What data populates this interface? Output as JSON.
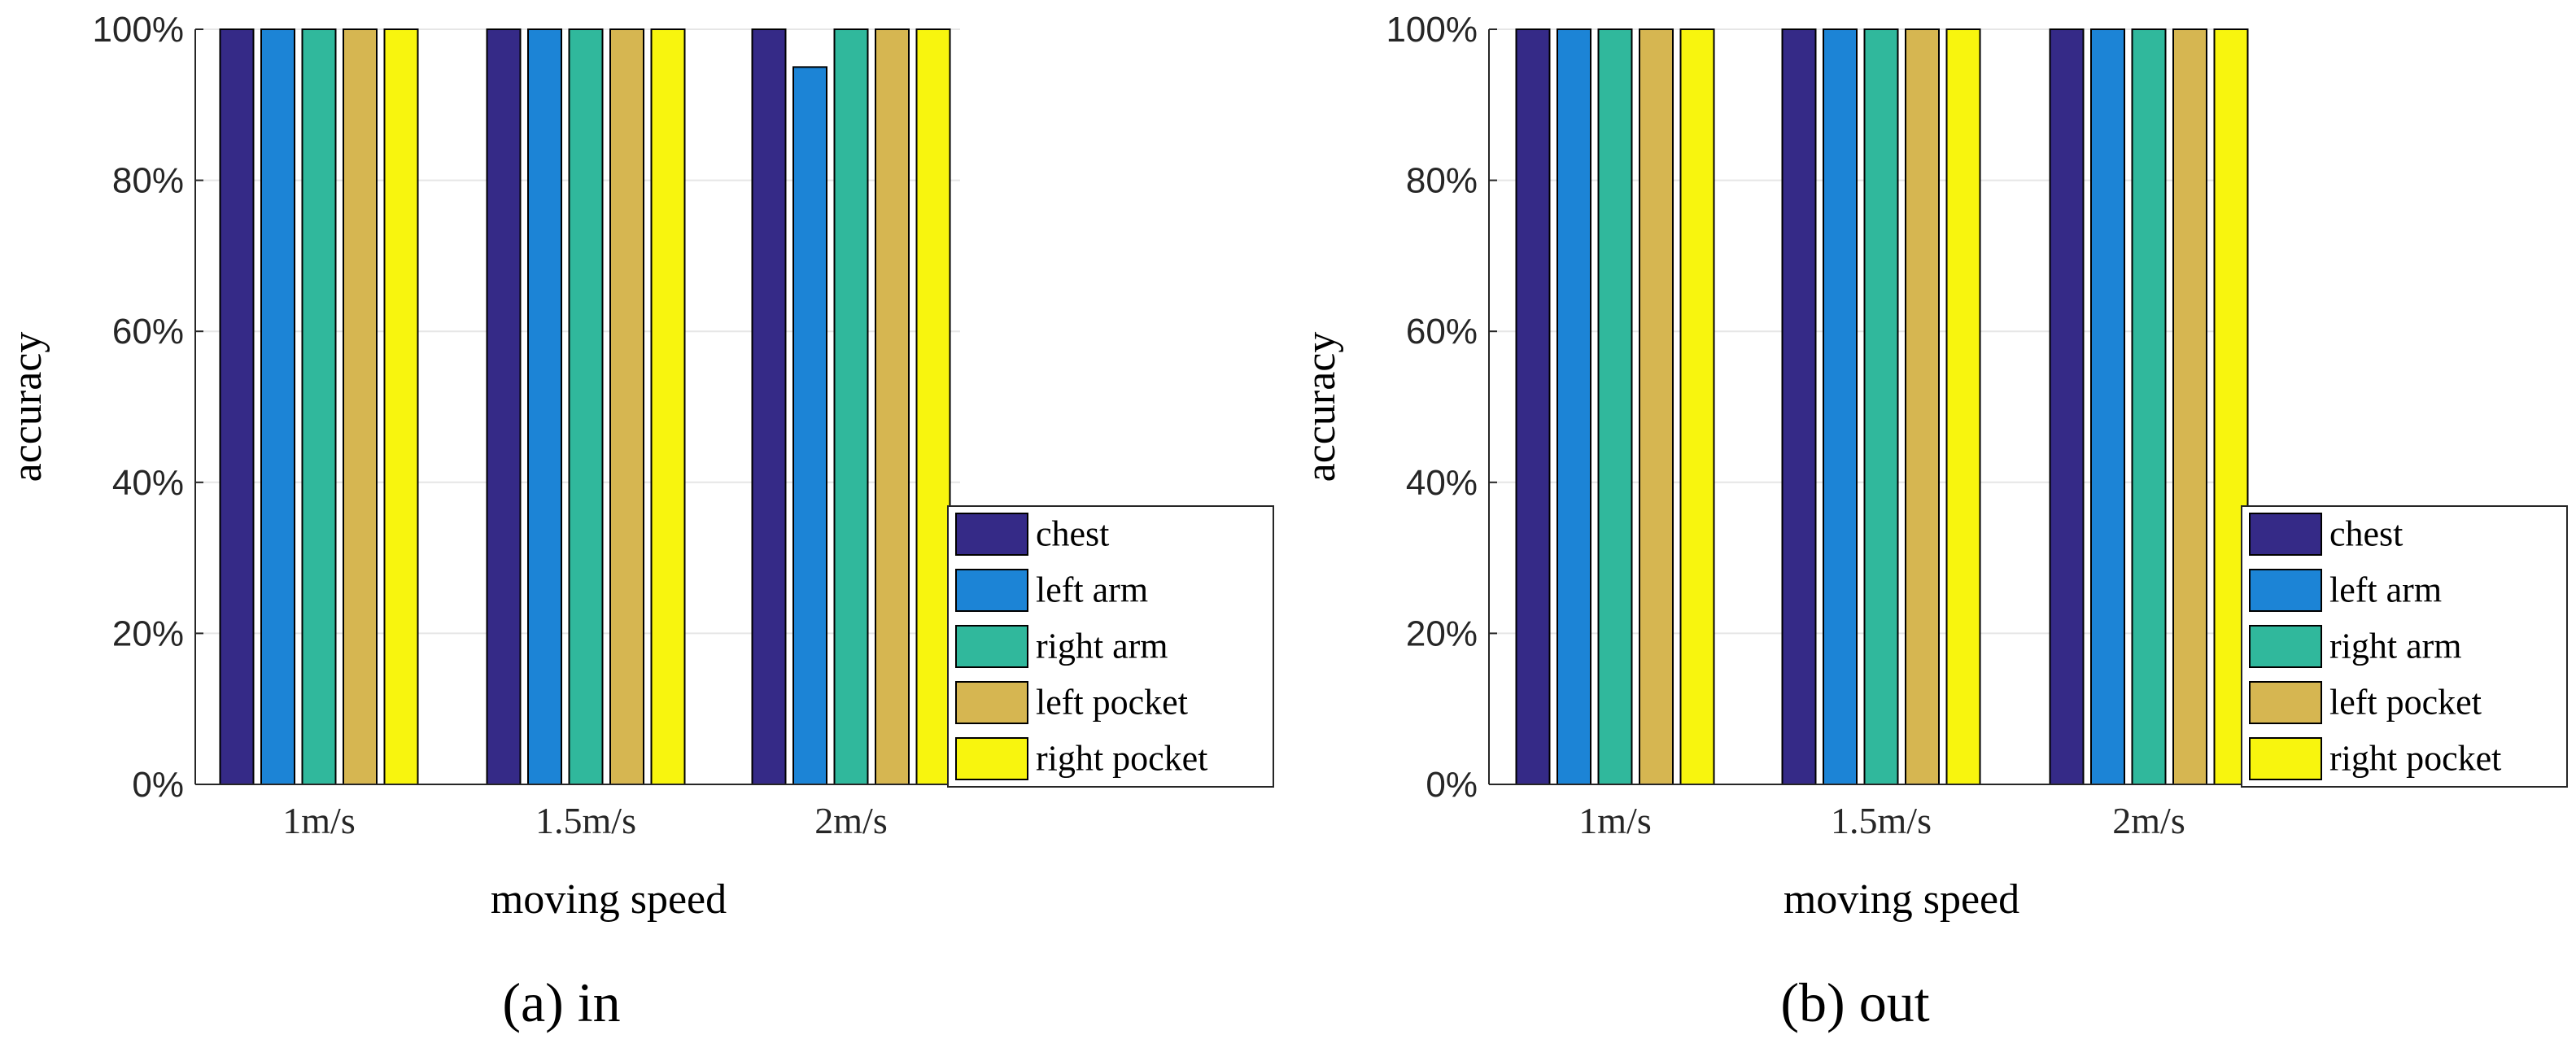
{
  "chart_data": [
    {
      "type": "bar",
      "caption": "(a)  in",
      "xlabel": "moving speed",
      "ylabel": "accuracy",
      "ylim": [
        0,
        100
      ],
      "yticks": [
        "0%",
        "20%",
        "40%",
        "60%",
        "80%",
        "100%"
      ],
      "yticks_values": [
        0,
        20,
        40,
        60,
        80,
        100
      ],
      "grid": true,
      "legend_position": "bottom-right",
      "categories": [
        "1m/s",
        "1.5m/s",
        "2m/s"
      ],
      "series": [
        {
          "name": "chest",
          "values": [
            100,
            100,
            100
          ]
        },
        {
          "name": "left arm",
          "values": [
            100,
            100,
            95
          ]
        },
        {
          "name": "right arm",
          "values": [
            100,
            100,
            100
          ]
        },
        {
          "name": "left pocket",
          "values": [
            100,
            100,
            100
          ]
        },
        {
          "name": "right pocket",
          "values": [
            100,
            100,
            100
          ]
        }
      ]
    },
    {
      "type": "bar",
      "caption": "(b)  out",
      "xlabel": "moving speed",
      "ylabel": "accuracy",
      "ylim": [
        0,
        100
      ],
      "yticks": [
        "0%",
        "20%",
        "40%",
        "60%",
        "80%",
        "100%"
      ],
      "yticks_values": [
        0,
        20,
        40,
        60,
        80,
        100
      ],
      "grid": true,
      "legend_position": "bottom-right",
      "categories": [
        "1m/s",
        "1.5m/s",
        "2m/s"
      ],
      "series": [
        {
          "name": "chest",
          "values": [
            100,
            100,
            100
          ]
        },
        {
          "name": "left arm",
          "values": [
            100,
            100,
            100
          ]
        },
        {
          "name": "right arm",
          "values": [
            100,
            100,
            100
          ]
        },
        {
          "name": "left pocket",
          "values": [
            100,
            100,
            100
          ]
        },
        {
          "name": "right pocket",
          "values": [
            100,
            100,
            100
          ]
        }
      ]
    }
  ],
  "series_colors": [
    "#352a87",
    "#1c84d6",
    "#30b89c",
    "#d6b651",
    "#f8f50e"
  ]
}
